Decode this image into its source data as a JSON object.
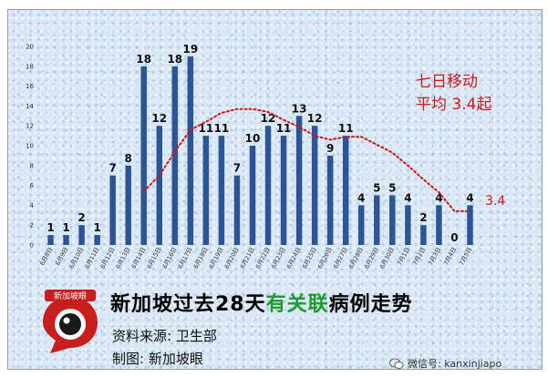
{
  "chart_data": {
    "type": "bar",
    "categories": [
      "6月8日",
      "6月9日",
      "6月10日",
      "6月11日",
      "6月12日",
      "6月13日",
      "6月14日",
      "6月15日",
      "6月16日",
      "6月17日",
      "6月18日",
      "6月19日",
      "6月20日",
      "6月21日",
      "6月22日",
      "6月23日",
      "6月24日",
      "6月25日",
      "6月26日",
      "6月27日",
      "6月28日",
      "6月29日",
      "6月30日",
      "7月1日",
      "7月2日",
      "7月3日",
      "7月4日",
      "7月5日"
    ],
    "values": [
      1,
      1,
      2,
      1,
      7,
      8,
      18,
      12,
      18,
      19,
      11,
      11,
      7,
      10,
      12,
      11,
      13,
      12,
      9,
      11,
      4,
      5,
      5,
      4,
      2,
      4,
      0,
      4
    ],
    "moving_average": [
      null,
      null,
      null,
      null,
      null,
      null,
      5.4,
      7.0,
      9.4,
      11.6,
      12.4,
      13.3,
      13.7,
      13.7,
      13.4,
      12.6,
      11.9,
      11.0,
      10.6,
      10.9,
      10.9,
      10.1,
      9.3,
      8.0,
      6.6,
      5.3,
      3.4,
      3.4
    ],
    "ylim": [
      0,
      20
    ],
    "yticks": [
      0,
      2,
      4,
      6,
      8,
      10,
      12,
      14,
      16,
      18,
      20
    ],
    "grid": false,
    "colors": {
      "bar": "#2c5595",
      "moving_average": "#d01818"
    },
    "annotation": {
      "line1": "七日移动",
      "line2": "平均 3.4起",
      "end_label": "3.4"
    }
  },
  "caption": {
    "title_part1": "新加坡过去28天",
    "title_highlight": "有关联",
    "title_part2": "病例走势",
    "source": "资料来源:  卫生部",
    "made_by": "制图:  新加坡眼",
    "logo_text": "新加坡眼"
  },
  "watermark": {
    "text": "微信号: kanxinjiapo",
    "icon": "wechat-icon"
  }
}
